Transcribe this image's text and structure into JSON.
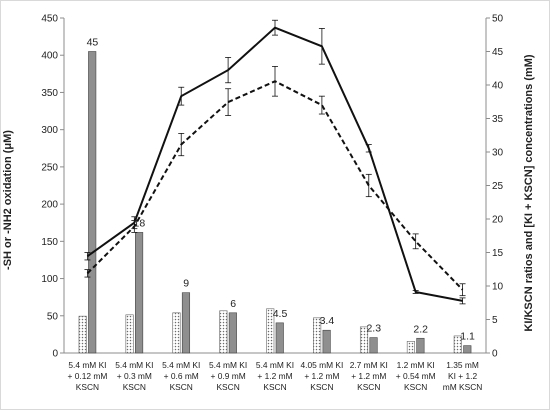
{
  "chart_data": {
    "type": "bar+line",
    "categories": [
      [
        "5.4 mM KI",
        "+ 0.12 mM",
        "KSCN"
      ],
      [
        "5.4 mM KI",
        "+ 0.3 mM",
        "KSCN"
      ],
      [
        "5.4 mM KI",
        "+ 0.6 mM",
        "KSCN"
      ],
      [
        "5.4 mM KI",
        "+ 0.9 mM",
        "KSCN"
      ],
      [
        "5.4 mM KI",
        "+ 1.2 mM",
        "KSCN"
      ],
      [
        "4.05 mM KI",
        "+ 1.2 mM",
        "KSCN"
      ],
      [
        "2.7 mM KI",
        "+ 1.2 mM",
        "KSCN"
      ],
      [
        "1.2 mM KI",
        "+ 0.54 mM",
        "KSCN"
      ],
      [
        "1.35 mM",
        "KI + 1.2",
        "mM KSCN"
      ]
    ],
    "ylabel_left": "-SH or -NH2 oxidation (μM)",
    "ylabel_right": "KI/KSCN ratios and [KI + KSCN] concentrations (mM)",
    "ylim_left": [
      0,
      450
    ],
    "yticks_left": [
      0,
      50,
      100,
      150,
      200,
      250,
      300,
      350,
      400,
      450
    ],
    "ylim_right": [
      0,
      50
    ],
    "yticks_right": [
      0,
      5,
      10,
      15,
      20,
      25,
      30,
      35,
      40,
      45,
      50
    ],
    "bars_dotted_right": [
      5.5,
      5.7,
      6.0,
      6.3,
      6.6,
      5.25,
      3.9,
      1.74,
      2.55
    ],
    "bars_gray_right": [
      45,
      18,
      9,
      6,
      4.5,
      3.4,
      2.3,
      2.2,
      1.1
    ],
    "bar_labels": [
      "45",
      "18",
      "9",
      "6",
      "4.5",
      "3.4",
      "2.3",
      "2.2",
      "1.1"
    ],
    "line_solid": {
      "values": [
        130,
        175,
        345,
        380,
        437,
        412,
        275,
        82,
        70
      ],
      "errors": [
        5,
        8,
        12,
        17,
        10,
        24,
        5,
        2,
        4
      ]
    },
    "line_dashed": {
      "values": [
        107,
        170,
        280,
        337,
        365,
        333,
        225,
        150,
        85
      ],
      "errors": [
        5,
        8,
        15,
        18,
        20,
        12,
        15,
        10,
        8
      ]
    },
    "grid": false,
    "legend": "none"
  }
}
